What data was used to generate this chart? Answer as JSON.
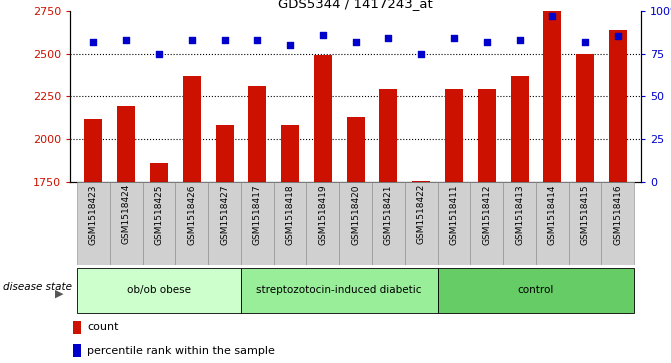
{
  "title": "GDS5344 / 1417243_at",
  "samples": [
    "GSM1518423",
    "GSM1518424",
    "GSM1518425",
    "GSM1518426",
    "GSM1518427",
    "GSM1518417",
    "GSM1518418",
    "GSM1518419",
    "GSM1518420",
    "GSM1518421",
    "GSM1518422",
    "GSM1518411",
    "GSM1518412",
    "GSM1518413",
    "GSM1518414",
    "GSM1518415",
    "GSM1518416"
  ],
  "counts": [
    2115,
    2190,
    1860,
    2370,
    2080,
    2310,
    2080,
    2490,
    2130,
    2290,
    1755,
    2290,
    2290,
    2370,
    2750,
    2500,
    2640
  ],
  "percentiles": [
    82,
    83,
    75,
    83,
    83,
    83,
    80,
    86,
    82,
    84,
    75,
    84,
    82,
    83,
    97,
    82,
    85
  ],
  "groups": [
    {
      "label": "ob/ob obese",
      "start": 0,
      "end": 5
    },
    {
      "label": "streptozotocin-induced diabetic",
      "start": 5,
      "end": 11
    },
    {
      "label": "control",
      "start": 11,
      "end": 17
    }
  ],
  "group_colors": [
    "#ccffcc",
    "#99ee99",
    "#66cc66"
  ],
  "ylim_left": [
    1750,
    2750
  ],
  "ylim_right": [
    0,
    100
  ],
  "yticks_left": [
    1750,
    2000,
    2250,
    2500,
    2750
  ],
  "yticks_right": [
    0,
    25,
    50,
    75,
    100
  ],
  "ytick_labels_right": [
    "0",
    "25",
    "50",
    "75",
    "100%"
  ],
  "bar_color": "#cc1100",
  "dot_color": "#0000cc",
  "bg_color": "#d0d0d0",
  "disease_state_label": "disease state",
  "legend_count": "count",
  "legend_percentile": "percentile rank within the sample"
}
